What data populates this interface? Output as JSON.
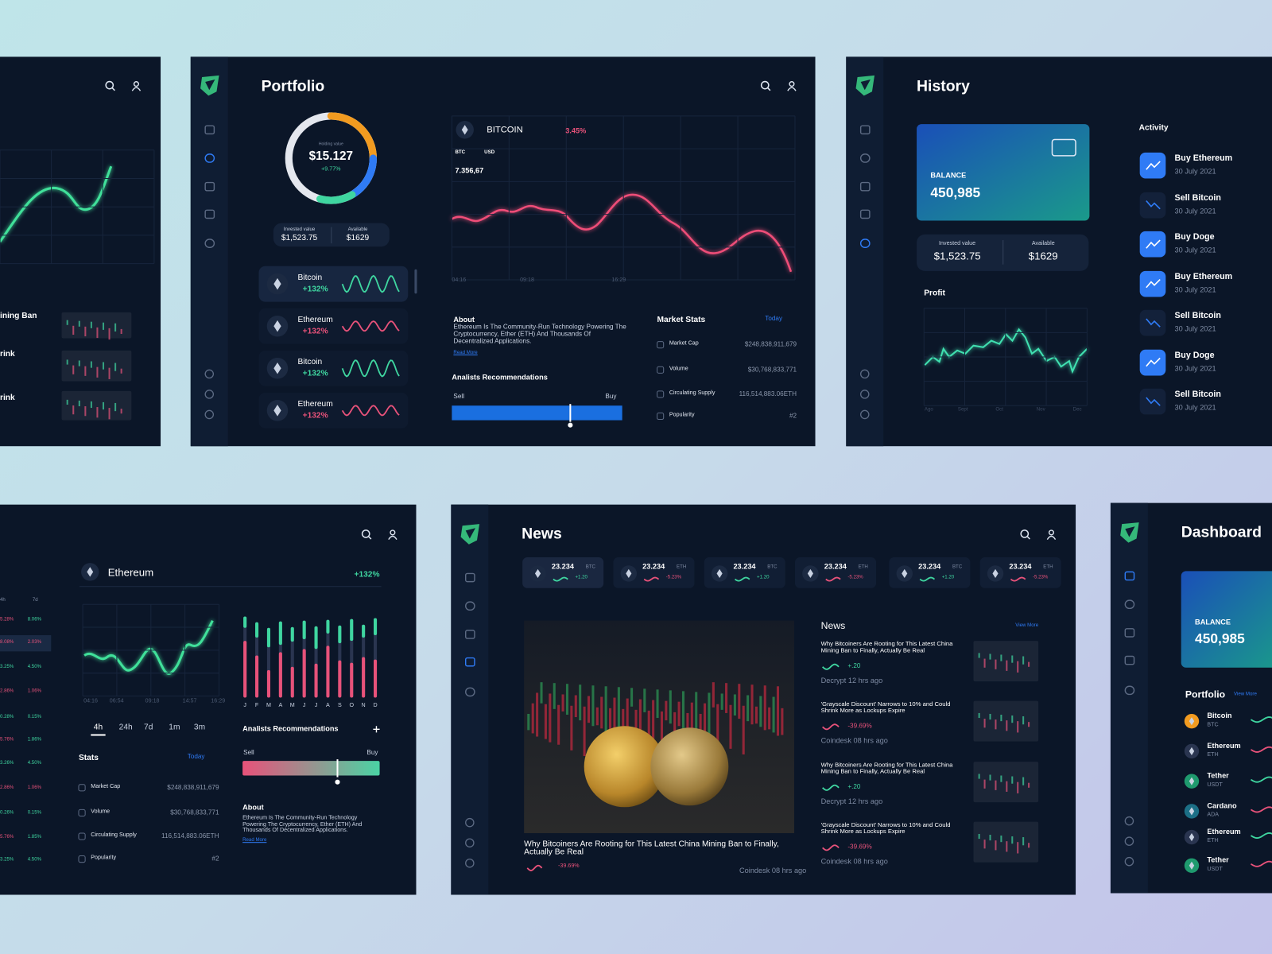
{
  "left_panel": {
    "headlines": [
      "ining Ban",
      "rink",
      "rink"
    ]
  },
  "portfolio": {
    "title": "Portfolio",
    "holding": {
      "label": "Holding value",
      "value": "$15.127",
      "change": "+9.77%"
    },
    "invested": {
      "label": "Invested value",
      "value": "$1,523.75"
    },
    "available": {
      "label": "Available",
      "value": "$1629"
    },
    "assets": [
      {
        "name": "Bitcoin",
        "change": "+132%",
        "color": "#3fd6a0"
      },
      {
        "name": "Ethereum",
        "change": "+132%",
        "color": "#e8527a"
      },
      {
        "name": "Bitcoin",
        "change": "+132%",
        "color": "#3fd6a0"
      },
      {
        "name": "Ethereum",
        "change": "+132%",
        "color": "#e8527a"
      }
    ],
    "chart": {
      "coin": "BITCOIN",
      "change": "3.45%",
      "base": "BTC",
      "quote": "USD",
      "price": "7.356,67",
      "times": [
        "04:16",
        "09:18",
        "16:29"
      ]
    },
    "about": {
      "title": "About",
      "text": "Ethereum Is The Community-Run Technology Powering The Cryptocurrency, Ether (ETH) And Thousands Of Decentralized Applications.",
      "link": "Read More"
    },
    "recommendations": {
      "title": "Analists Recommendations",
      "sell": "Sell",
      "buy": "Buy"
    },
    "market_stats": {
      "title": "Market Stats",
      "period": "Today",
      "rows": [
        [
          "Market Cap",
          "$248,838,911,679"
        ],
        [
          "Volume",
          "$30,768,833,771"
        ],
        [
          "Circulating Supply",
          "116,514,883.06ETH"
        ],
        [
          "Popularity",
          "#2"
        ]
      ]
    }
  },
  "history": {
    "title": "History",
    "balance_label": "BALANCE",
    "balance": "450,985",
    "invested": {
      "label": "Invested value",
      "value": "$1,523.75"
    },
    "available": {
      "label": "Available",
      "value": "$1629"
    },
    "profit": "Profit",
    "months": [
      "Ago",
      "Sept",
      "Oct",
      "Nov",
      "Dec"
    ],
    "activity_title": "Activity",
    "activity": [
      {
        "action": "Buy Ethereum",
        "date": "30 July 2021"
      },
      {
        "action": "Sell Bitcoin",
        "date": "30 July 2021"
      },
      {
        "action": "Buy Doge",
        "date": "30 July 2021"
      },
      {
        "action": "Buy Ethereum",
        "date": "30 July 2021"
      },
      {
        "action": "Sell Bitcoin",
        "date": "30 July 2021"
      },
      {
        "action": "Buy Doge",
        "date": "30 July 2021"
      },
      {
        "action": "Sell Bitcoin",
        "date": "30 July 2021"
      }
    ]
  },
  "ethereum_panel": {
    "columns": [
      "4h",
      "7d"
    ],
    "rows": [
      {
        "cells": [
          "5.28%",
          "8.06%"
        ],
        "colors": [
          "#e8527a",
          "#3fd6a0"
        ]
      },
      {
        "cells": [
          "8.08%",
          "2.03%"
        ],
        "colors": [
          "#e8527a",
          "#e8527a"
        ]
      },
      {
        "cells": [
          "3.25%",
          "4.50%"
        ],
        "colors": [
          "#3fd6a0",
          "#3fd6a0"
        ]
      },
      {
        "cells": [
          "2.86%",
          "1.06%"
        ],
        "colors": [
          "#e8527a",
          "#e8527a"
        ]
      },
      {
        "cells": [
          "0.28%",
          "0.15%"
        ],
        "colors": [
          "#3fd6a0",
          "#3fd6a0"
        ]
      },
      {
        "cells": [
          "5.76%",
          "1.86%"
        ],
        "colors": [
          "#e8527a",
          "#3fd6a0"
        ]
      },
      {
        "cells": [
          "3.26%",
          "4.50%"
        ],
        "colors": [
          "#3fd6a0",
          "#3fd6a0"
        ]
      },
      {
        "cells": [
          "2.86%",
          "1.06%"
        ],
        "colors": [
          "#e8527a",
          "#e8527a"
        ]
      },
      {
        "cells": [
          "0.26%",
          "0.15%"
        ],
        "colors": [
          "#3fd6a0",
          "#3fd6a0"
        ]
      },
      {
        "cells": [
          "5.76%",
          "1.85%"
        ],
        "colors": [
          "#e8527a",
          "#3fd6a0"
        ]
      },
      {
        "cells": [
          "3.25%",
          "4.50%"
        ],
        "colors": [
          "#3fd6a0",
          "#3fd6a0"
        ]
      }
    ],
    "coin": "Ethereum",
    "change": "+132%",
    "times": [
      "04:16",
      "06:54",
      "09:18",
      "14:57",
      "16:29"
    ],
    "ranges": [
      "4h",
      "24h",
      "7d",
      "1m",
      "3m"
    ],
    "months": [
      "J",
      "F",
      "M",
      "A",
      "M",
      "J",
      "J",
      "A",
      "S",
      "O",
      "N",
      "D"
    ],
    "recommendations": {
      "title": "Analists Recommendations",
      "sell": "Sell",
      "buy": "Buy"
    },
    "stats": {
      "title": "Stats",
      "period": "Today",
      "rows": [
        [
          "Market Cap",
          "$248,838,911,679"
        ],
        [
          "Volume",
          "$30,768,833,771"
        ],
        [
          "Circulating Supply",
          "116,514,883.06ETH"
        ],
        [
          "Popularity",
          "#2"
        ]
      ]
    },
    "about": {
      "title": "About",
      "text": "Ethereum Is The Community-Run Technology Powering The Cryptocurrency, Ether (ETH) And Thousands Of Decentralized Applications.",
      "link": "Read More"
    }
  },
  "news": {
    "title": "News",
    "tickers": [
      {
        "price": "23.234",
        "symbol": "BTC",
        "change": "+1.20",
        "color": "#3fd6a0"
      },
      {
        "price": "23.234",
        "symbol": "ETH",
        "change": "-5.23%",
        "color": "#e8527a"
      },
      {
        "price": "23.234",
        "symbol": "BTC",
        "change": "+1.20",
        "color": "#3fd6a0"
      },
      {
        "price": "23.234",
        "symbol": "ETH",
        "change": "-5.23%",
        "color": "#e8527a"
      },
      {
        "price": "23.234",
        "symbol": "BTC",
        "change": "+1.20",
        "color": "#3fd6a0"
      },
      {
        "price": "23.234",
        "symbol": "ETH",
        "change": "-5.23%",
        "color": "#e8527a"
      }
    ],
    "feature": {
      "headline": "Why Bitcoiners Are Rooting for This Latest China Mining Ban to Finally, Actually Be Real",
      "change": "-39.69%",
      "source": "Coindesk 08 hrs ago"
    },
    "side_title": "News",
    "view_more": "View More",
    "items": [
      {
        "headline": "Why Bitcoiners Are Rooting for This Latest China Mining Ban to Finally, Actually Be Real",
        "change": "+.20",
        "source": "Decrypt 12 hrs ago",
        "color": "#3fd6a0"
      },
      {
        "headline": "'Grayscale Discount' Narrows to 10% and Could Shrink More as Lockups Expire",
        "change": "-39.69%",
        "source": "Coindesk 08 hrs ago",
        "color": "#e8527a"
      },
      {
        "headline": "Why Bitcoiners Are Rooting for This Latest China Mining Ban to Finally, Actually Be Real",
        "change": "+.20",
        "source": "Decrypt 12 hrs ago",
        "color": "#3fd6a0"
      },
      {
        "headline": "'Grayscale Discount' Narrows to 10% and Could Shrink More as Lockups Expire",
        "change": "-39.69%",
        "source": "Coindesk 08 hrs ago",
        "color": "#e8527a"
      }
    ]
  },
  "dashboard": {
    "title": "Dashboard",
    "balance_label": "BALANCE",
    "balance": "450,985",
    "portfolio": "Portfolio",
    "view_more": "View More",
    "assets": [
      {
        "name": "Bitcoin",
        "symbol": "BTC",
        "color": "#f29b20"
      },
      {
        "name": "Ethereum",
        "symbol": "ETH",
        "color": "#2a3550"
      },
      {
        "name": "Tether",
        "symbol": "USDT",
        "color": "#1f9a6e"
      },
      {
        "name": "Cardano",
        "symbol": "ADA",
        "color": "#1c6f86"
      },
      {
        "name": "Ethereum",
        "symbol": "ETH",
        "color": "#2a3550"
      },
      {
        "name": "Tether",
        "symbol": "USDT",
        "color": "#1f9a6e"
      }
    ]
  }
}
